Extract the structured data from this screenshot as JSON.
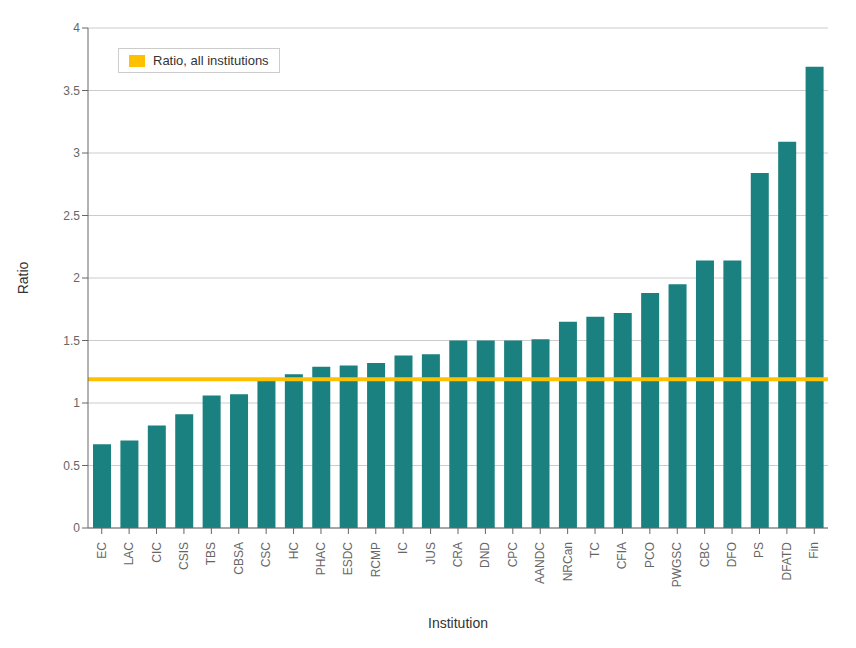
{
  "chart_data": {
    "type": "bar",
    "categories": [
      "EC",
      "LAC",
      "CIC",
      "CSIS",
      "TBS",
      "CBSA",
      "CSC",
      "HC",
      "PHAC",
      "ESDC",
      "RCMP",
      "IC",
      "JUS",
      "CRA",
      "DND",
      "CPC",
      "AANDC",
      "NRCan",
      "TC",
      "CFIA",
      "PCO",
      "PWGSC",
      "CBC",
      "DFO",
      "PS",
      "DFATD",
      "Fin"
    ],
    "values": [
      0.67,
      0.7,
      0.82,
      0.91,
      1.06,
      1.07,
      1.2,
      1.23,
      1.29,
      1.3,
      1.32,
      1.38,
      1.39,
      1.5,
      1.5,
      1.5,
      1.51,
      1.65,
      1.69,
      1.72,
      1.88,
      1.95,
      2.14,
      2.14,
      2.84,
      3.09,
      3.69
    ],
    "color": "#1a8080",
    "xlabel": "Institution",
    "ylabel": "Ratio",
    "ylim": [
      0,
      4.0
    ],
    "yticks": [
      0,
      0.5,
      1.0,
      1.5,
      2.0,
      2.5,
      3.0,
      3.5,
      4.0
    ],
    "grid": true,
    "legend": "upper left",
    "reference_line": {
      "value": 1.19,
      "label": "Ratio, all institutions",
      "color": "#FFC000"
    }
  }
}
